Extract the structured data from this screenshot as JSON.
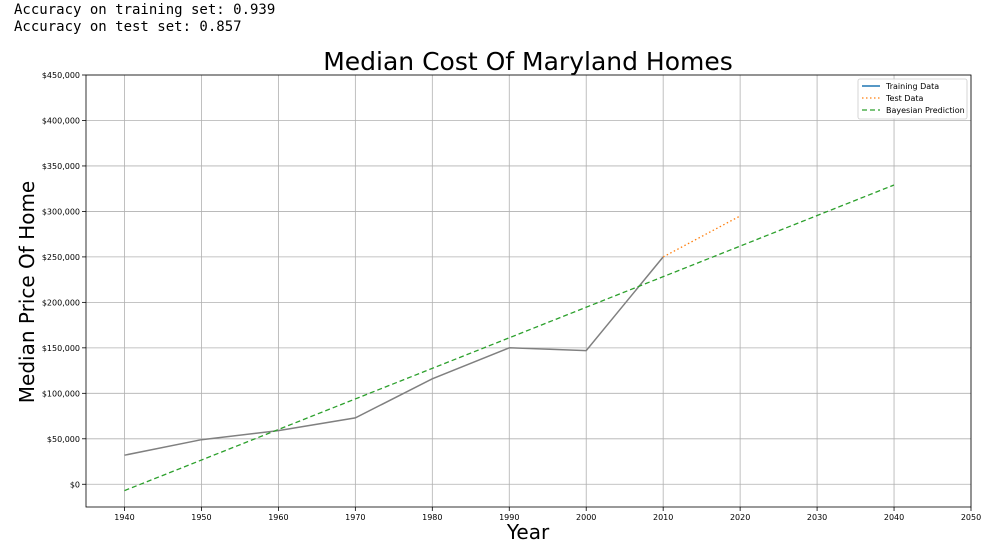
{
  "console": {
    "lines": [
      "Accuracy on training set: 0.939",
      "Accuracy on test set: 0.857"
    ]
  },
  "colors": {
    "training": "#808080",
    "training_legend": "#1f77b4",
    "test": "#ff7f0e",
    "prediction": "#2ca02c",
    "grid": "#b0b0b0"
  },
  "chart_data": {
    "type": "line",
    "title": "Median Cost Of Maryland Homes",
    "xlabel": "Year",
    "ylabel": "Median Price Of Home",
    "xlim": [
      1935,
      2050
    ],
    "ylim": [
      -25000,
      450000
    ],
    "x_ticks": [
      1940,
      1950,
      1960,
      1970,
      1980,
      1990,
      2000,
      2010,
      2020,
      2030,
      2040,
      2050
    ],
    "y_ticks": [
      0,
      50000,
      100000,
      150000,
      200000,
      250000,
      300000,
      350000,
      400000,
      450000
    ],
    "y_tick_labels": [
      "$0",
      "$50,000",
      "$100,000",
      "$150,000",
      "$200,000",
      "$250,000",
      "$300,000",
      "$350,000",
      "$400,000",
      "$450,000"
    ],
    "grid": true,
    "legend_position": "top-right",
    "series": [
      {
        "name": "Training Data",
        "style": "solid",
        "x": [
          1940,
          1950,
          1960,
          1970,
          1980,
          1990,
          2000,
          2010
        ],
        "y": [
          32000,
          49000,
          59000,
          73000,
          116000,
          150000,
          147000,
          250000
        ]
      },
      {
        "name": "Test Data",
        "style": "dotted",
        "x": [
          2010,
          2020
        ],
        "y": [
          250000,
          295000
        ]
      },
      {
        "name": "Bayesian Prediction",
        "style": "dashed",
        "x": [
          1940,
          2040
        ],
        "y": [
          -7000,
          329000
        ]
      }
    ]
  }
}
